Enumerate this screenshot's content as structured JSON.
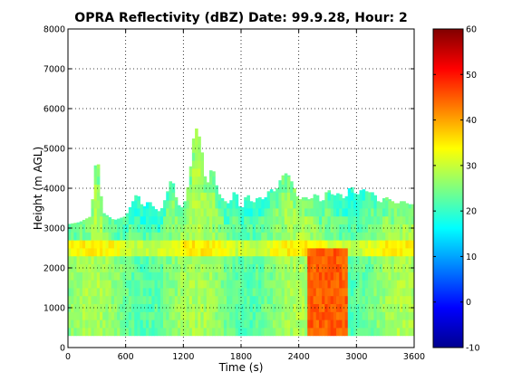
{
  "chart_data": {
    "type": "heatmap",
    "title": "OPRA Reflectivity (dBZ)  Date: 99.9.28, Hour: 2",
    "xlabel": "Time (s)",
    "ylabel": "Height (m AGL)",
    "xlim": [
      0,
      3600
    ],
    "ylim": [
      0,
      8000
    ],
    "xticks": [
      "0",
      "600",
      "1200",
      "1800",
      "2400",
      "3000",
      "3600"
    ],
    "yticks": [
      "0",
      "1000",
      "2000",
      "3000",
      "4000",
      "5000",
      "6000",
      "7000",
      "8000"
    ],
    "grid": true,
    "colorbar": {
      "range": [
        -10,
        60
      ],
      "ticks": [
        "-10",
        "0",
        "10",
        "20",
        "30",
        "40",
        "50",
        "60"
      ],
      "colormap": "jet"
    },
    "echo": {
      "base_height": 300,
      "melting_layer": {
        "center": 2500,
        "thickness": 300,
        "value": 36
      },
      "top_profile": {
        "time": [
          0,
          120,
          240,
          300,
          360,
          480,
          600,
          660,
          720,
          780,
          840,
          900,
          960,
          1020,
          1080,
          1140,
          1200,
          1260,
          1320,
          1380,
          1440,
          1500,
          1560,
          1620,
          1680,
          1740,
          1800,
          1860,
          1920,
          1980,
          2040,
          2100,
          2160,
          2220,
          2280,
          2340,
          2400,
          2460,
          2520,
          2580,
          2640,
          2700,
          2760,
          2820,
          2880,
          2940,
          3000,
          3060,
          3120,
          3180,
          3240,
          3300,
          3360,
          3420,
          3480,
          3540,
          3600
        ],
        "height": [
          3100,
          3150,
          3300,
          5000,
          3400,
          3200,
          3300,
          3600,
          3900,
          3500,
          3700,
          3500,
          3400,
          3800,
          4300,
          3600,
          3500,
          4200,
          5600,
          5200,
          4000,
          4600,
          3900,
          3700,
          3600,
          4000,
          3400,
          3900,
          3600,
          3800,
          3700,
          4000,
          3900,
          4300,
          4400,
          4100,
          3700,
          3800,
          3700,
          3900,
          3600,
          4000,
          3800,
          3900,
          3700,
          4100,
          3800,
          4000,
          3900,
          3900,
          3600,
          3800,
          3700,
          3600,
          3700,
          3600,
          3600
        ]
      },
      "cells": [
        {
          "time_range": [
            2480,
            2900
          ],
          "height_range": [
            300,
            2500
          ],
          "value": 45
        },
        {
          "time_range": [
            1260,
            1540
          ],
          "height_range": [
            4700,
            6100
          ],
          "value": 26
        }
      ]
    }
  }
}
